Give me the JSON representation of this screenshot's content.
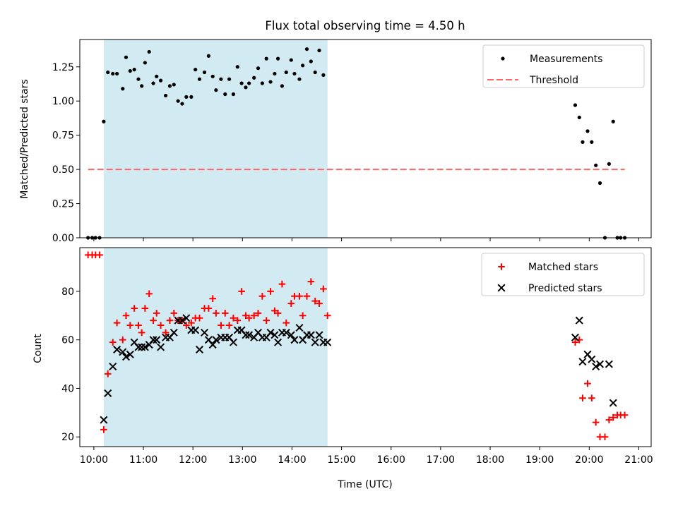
{
  "title": "Flux total observing time = 4.50 h",
  "colors": {
    "shade": "#add8e6",
    "measurements": "#000000",
    "threshold": "#ff6666",
    "matched": "#ff0000",
    "predicted": "#000000"
  },
  "chart_data": [
    {
      "type": "scatter",
      "ylabel": "Matched/Predicted stars",
      "xlim": [
        "09:43",
        "21:15"
      ],
      "ylim": [
        0,
        1.45
      ],
      "yticks": [
        {
          "value": 0,
          "label": "0.00"
        },
        {
          "value": 0.25,
          "label": "0.25"
        },
        {
          "value": 0.5,
          "label": "0.50"
        },
        {
          "value": 0.75,
          "label": "0.75"
        },
        {
          "value": 1.0,
          "label": "1.00"
        },
        {
          "value": 1.25,
          "label": "1.25"
        }
      ],
      "shaded_span": [
        "10:12",
        "14:43"
      ],
      "legend_position": "upper right",
      "series": [
        {
          "name": "Measurements",
          "marker": "dot",
          "color": "#000000",
          "points": [
            [
              "09:53",
              0
            ],
            [
              "09:58",
              0
            ],
            [
              "10:02",
              0
            ],
            [
              "10:07",
              0
            ],
            [
              "10:12",
              0.85
            ],
            [
              "10:17",
              1.21
            ],
            [
              "10:23",
              1.2
            ],
            [
              "10:28",
              1.2
            ],
            [
              "10:35",
              1.09
            ],
            [
              "10:39",
              1.32
            ],
            [
              "10:44",
              1.22
            ],
            [
              "10:49",
              1.23
            ],
            [
              "10:54",
              1.16
            ],
            [
              "10:58",
              1.11
            ],
            [
              "11:02",
              1.28
            ],
            [
              "11:07",
              1.36
            ],
            [
              "11:12",
              1.13
            ],
            [
              "11:16",
              1.18
            ],
            [
              "11:21",
              1.15
            ],
            [
              "11:27",
              1.04
            ],
            [
              "11:32",
              1.11
            ],
            [
              "11:37",
              1.12
            ],
            [
              "11:42",
              1.0
            ],
            [
              "11:47",
              0.98
            ],
            [
              "11:52",
              1.03
            ],
            [
              "11:58",
              1.03
            ],
            [
              "12:03",
              1.23
            ],
            [
              "12:08",
              1.16
            ],
            [
              "12:14",
              1.21
            ],
            [
              "12:19",
              1.33
            ],
            [
              "12:24",
              1.18
            ],
            [
              "12:28",
              1.08
            ],
            [
              "12:34",
              1.16
            ],
            [
              "12:39",
              1.05
            ],
            [
              "12:44",
              1.16
            ],
            [
              "12:49",
              1.05
            ],
            [
              "12:54",
              1.25
            ],
            [
              "12:59",
              1.13
            ],
            [
              "13:04",
              1.1
            ],
            [
              "13:08",
              1.13
            ],
            [
              "13:14",
              1.17
            ],
            [
              "13:19",
              1.24
            ],
            [
              "13:24",
              1.13
            ],
            [
              "13:29",
              1.31
            ],
            [
              "13:34",
              1.14
            ],
            [
              "13:39",
              1.2
            ],
            [
              "13:43",
              1.31
            ],
            [
              "13:48",
              1.11
            ],
            [
              "13:53",
              1.21
            ],
            [
              "13:59",
              1.3
            ],
            [
              "14:03",
              1.2
            ],
            [
              "14:09",
              1.16
            ],
            [
              "14:13",
              1.26
            ],
            [
              "14:18",
              1.38
            ],
            [
              "14:23",
              1.29
            ],
            [
              "14:28",
              1.21
            ],
            [
              "14:33",
              1.37
            ],
            [
              "14:38",
              1.19
            ],
            [
              "19:43",
              0.97
            ],
            [
              "19:48",
              0.88
            ],
            [
              "19:52",
              0.7
            ],
            [
              "19:58",
              0.78
            ],
            [
              "20:03",
              0.7
            ],
            [
              "20:08",
              0.53
            ],
            [
              "20:13",
              0.4
            ],
            [
              "20:19",
              0
            ],
            [
              "20:24",
              0.54
            ],
            [
              "20:29",
              0.85
            ],
            [
              "20:34",
              0
            ],
            [
              "20:38",
              0
            ],
            [
              "20:43",
              0
            ]
          ]
        },
        {
          "name": "Threshold",
          "marker": "dashed-line",
          "color": "#ff6666",
          "points": [
            [
              "09:53",
              0.5
            ],
            [
              "20:43",
              0.5
            ]
          ]
        }
      ]
    },
    {
      "type": "scatter",
      "ylabel": "Count",
      "xlabel": "Time (UTC)",
      "xlim": [
        "09:43",
        "21:15"
      ],
      "ylim": [
        16,
        98
      ],
      "yticks": [
        {
          "value": 20,
          "label": "20"
        },
        {
          "value": 40,
          "label": "40"
        },
        {
          "value": 60,
          "label": "60"
        },
        {
          "value": 80,
          "label": "80"
        }
      ],
      "xticks": [
        "10:00",
        "11:00",
        "12:00",
        "13:00",
        "14:00",
        "15:00",
        "16:00",
        "17:00",
        "18:00",
        "19:00",
        "20:00",
        "21:00"
      ],
      "shaded_span": [
        "10:12",
        "14:43"
      ],
      "legend_position": "upper right",
      "series": [
        {
          "name": "Matched stars",
          "marker": "plus",
          "color": "#ff0000",
          "points": [
            [
              "09:53",
              95
            ],
            [
              "09:58",
              95
            ],
            [
              "10:02",
              95
            ],
            [
              "10:07",
              95
            ],
            [
              "10:12",
              23
            ],
            [
              "10:17",
              46
            ],
            [
              "10:23",
              59
            ],
            [
              "10:28",
              67
            ],
            [
              "10:35",
              60
            ],
            [
              "10:39",
              70
            ],
            [
              "10:44",
              66
            ],
            [
              "10:49",
              73
            ],
            [
              "10:54",
              66
            ],
            [
              "10:58",
              63
            ],
            [
              "11:02",
              73
            ],
            [
              "11:07",
              79
            ],
            [
              "11:12",
              68
            ],
            [
              "11:16",
              71
            ],
            [
              "11:21",
              66
            ],
            [
              "11:27",
              63
            ],
            [
              "11:32",
              68
            ],
            [
              "11:37",
              71
            ],
            [
              "11:42",
              68
            ],
            [
              "11:47",
              68
            ],
            [
              "11:52",
              66
            ],
            [
              "11:58",
              67
            ],
            [
              "12:03",
              69
            ],
            [
              "12:08",
              69
            ],
            [
              "12:14",
              73
            ],
            [
              "12:19",
              73
            ],
            [
              "12:24",
              77
            ],
            [
              "12:28",
              71
            ],
            [
              "12:34",
              66
            ],
            [
              "12:39",
              71
            ],
            [
              "12:44",
              66
            ],
            [
              "12:49",
              69
            ],
            [
              "12:54",
              68
            ],
            [
              "12:59",
              80
            ],
            [
              "13:04",
              70
            ],
            [
              "13:08",
              69
            ],
            [
              "13:14",
              70
            ],
            [
              "13:19",
              71
            ],
            [
              "13:24",
              78
            ],
            [
              "13:29",
              68
            ],
            [
              "13:34",
              80
            ],
            [
              "13:39",
              72
            ],
            [
              "13:43",
              71
            ],
            [
              "13:48",
              83
            ],
            [
              "13:53",
              67
            ],
            [
              "13:59",
              75
            ],
            [
              "14:03",
              78
            ],
            [
              "14:09",
              78
            ],
            [
              "14:13",
              70
            ],
            [
              "14:18",
              78
            ],
            [
              "14:23",
              84
            ],
            [
              "14:28",
              76
            ],
            [
              "14:33",
              75
            ],
            [
              "14:38",
              81
            ],
            [
              "14:43",
              70
            ],
            [
              "19:43",
              59
            ],
            [
              "19:48",
              60
            ],
            [
              "19:52",
              36
            ],
            [
              "19:58",
              42
            ],
            [
              "20:03",
              36
            ],
            [
              "20:08",
              26
            ],
            [
              "20:13",
              20
            ],
            [
              "20:19",
              20
            ],
            [
              "20:24",
              27
            ],
            [
              "20:29",
              28
            ],
            [
              "20:34",
              29
            ],
            [
              "20:38",
              29
            ],
            [
              "20:43",
              29
            ]
          ]
        },
        {
          "name": "Predicted stars",
          "marker": "x",
          "color": "#000000",
          "points": [
            [
              "10:12",
              27
            ],
            [
              "10:17",
              38
            ],
            [
              "10:23",
              49
            ],
            [
              "10:28",
              56
            ],
            [
              "10:35",
              55
            ],
            [
              "10:39",
              53
            ],
            [
              "10:44",
              54
            ],
            [
              "10:49",
              59
            ],
            [
              "10:54",
              57
            ],
            [
              "10:58",
              57
            ],
            [
              "11:02",
              57
            ],
            [
              "11:07",
              58
            ],
            [
              "11:12",
              60
            ],
            [
              "11:16",
              60
            ],
            [
              "11:21",
              57
            ],
            [
              "11:27",
              61
            ],
            [
              "11:32",
              61
            ],
            [
              "11:37",
              63
            ],
            [
              "11:42",
              68
            ],
            [
              "11:47",
              68
            ],
            [
              "11:52",
              69
            ],
            [
              "11:58",
              64
            ],
            [
              "12:03",
              64
            ],
            [
              "12:08",
              56
            ],
            [
              "12:14",
              63
            ],
            [
              "12:19",
              60
            ],
            [
              "12:24",
              58
            ],
            [
              "12:28",
              60
            ],
            [
              "12:34",
              61
            ],
            [
              "12:39",
              61
            ],
            [
              "12:44",
              61
            ],
            [
              "12:49",
              59
            ],
            [
              "12:54",
              64
            ],
            [
              "12:59",
              64
            ],
            [
              "13:04",
              62
            ],
            [
              "13:08",
              62
            ],
            [
              "13:14",
              61
            ],
            [
              "13:19",
              63
            ],
            [
              "13:24",
              61
            ],
            [
              "13:29",
              61
            ],
            [
              "13:34",
              63
            ],
            [
              "13:39",
              62
            ],
            [
              "13:43",
              59
            ],
            [
              "13:48",
              63
            ],
            [
              "13:53",
              63
            ],
            [
              "13:59",
              62
            ],
            [
              "14:03",
              60
            ],
            [
              "14:09",
              65
            ],
            [
              "14:13",
              60
            ],
            [
              "14:18",
              62
            ],
            [
              "14:23",
              62
            ],
            [
              "14:28",
              59
            ],
            [
              "14:33",
              62
            ],
            [
              "14:38",
              59
            ],
            [
              "14:43",
              59
            ],
            [
              "19:43",
              61
            ],
            [
              "19:48",
              68
            ],
            [
              "19:52",
              51
            ],
            [
              "19:58",
              54
            ],
            [
              "20:03",
              52
            ],
            [
              "20:08",
              49
            ],
            [
              "20:13",
              50
            ],
            [
              "20:24",
              50
            ],
            [
              "20:29",
              34
            ]
          ]
        }
      ]
    }
  ]
}
